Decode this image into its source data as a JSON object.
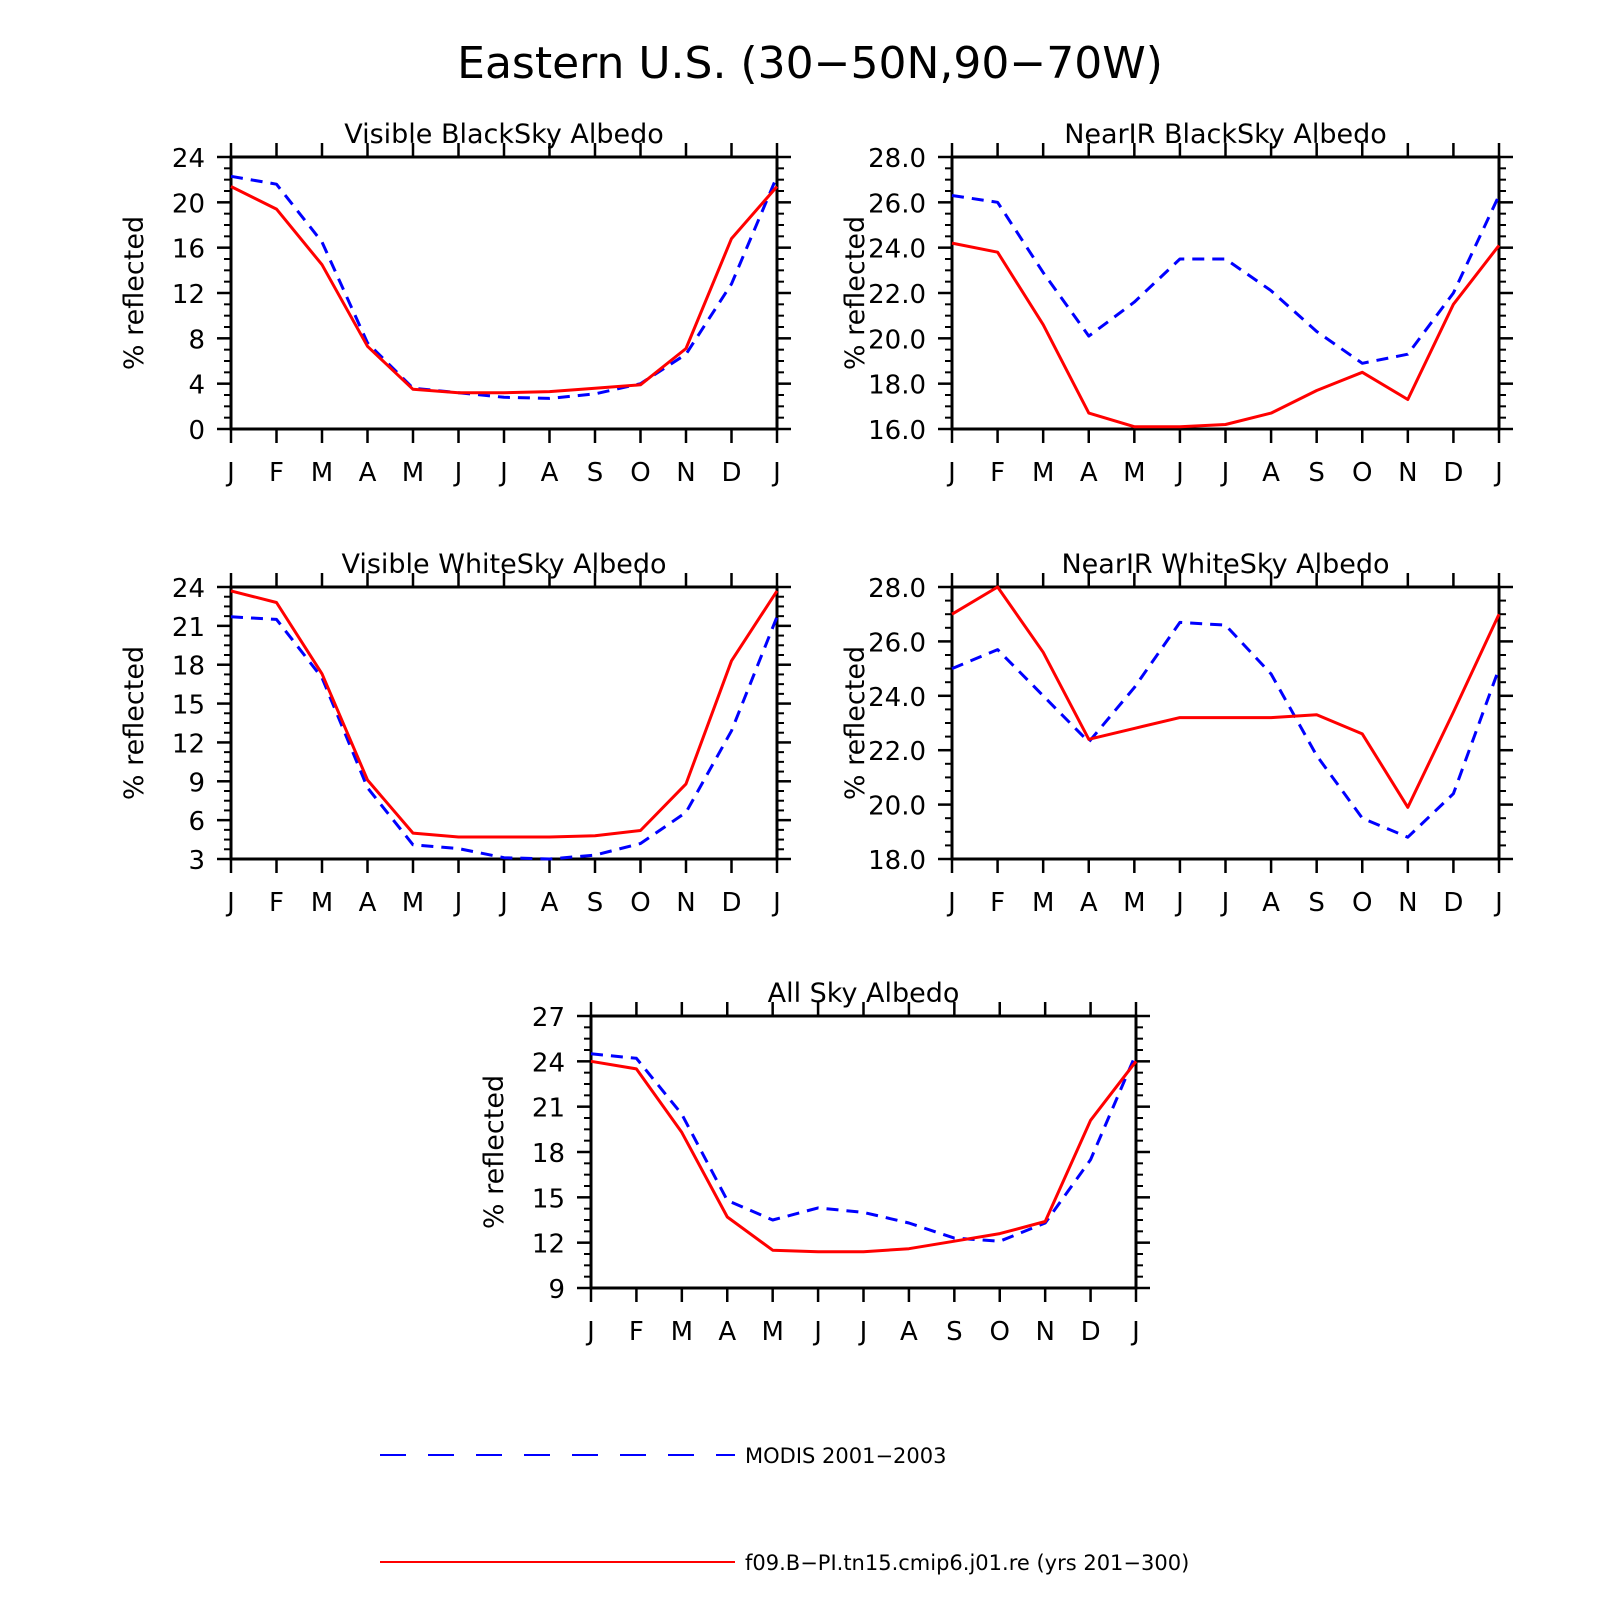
{
  "title": "Eastern U.S. (30−50N,90−70W)",
  "legend": [
    {
      "label": "MODIS 2001−2003",
      "color": "#0000ff",
      "style": "dashed"
    },
    {
      "label": "f09.B−PI.tn15.cmip6.j01.re (yrs 201−300)",
      "color": "#ff0000",
      "style": "solid"
    }
  ],
  "chart_data": [
    {
      "type": "line",
      "title": "Visible BlackSky Albedo",
      "ylabel": "% reflected",
      "categories": [
        "J",
        "F",
        "M",
        "A",
        "M",
        "J",
        "J",
        "A",
        "S",
        "O",
        "N",
        "D",
        "J"
      ],
      "ylim": [
        0,
        24
      ],
      "yticks": [
        "0",
        "4",
        "8",
        "12",
        "16",
        "20",
        "24"
      ],
      "series": [
        {
          "name": "MODIS 2001−2003",
          "color": "#0000ff",
          "dash": true,
          "values": [
            22.3,
            21.6,
            16.5,
            7.6,
            3.6,
            3.2,
            2.8,
            2.7,
            3.1,
            4.0,
            6.6,
            12.8,
            22.3
          ]
        },
        {
          "name": "f09.B−PI.tn15.cmip6.j01.re (yrs 201−300)",
          "color": "#ff0000",
          "dash": false,
          "values": [
            21.4,
            19.4,
            14.5,
            7.3,
            3.5,
            3.2,
            3.2,
            3.3,
            3.6,
            3.9,
            7.1,
            16.8,
            21.4
          ]
        }
      ]
    },
    {
      "type": "line",
      "title": "NearIR BlackSky Albedo",
      "ylabel": "% reflected",
      "categories": [
        "J",
        "F",
        "M",
        "A",
        "M",
        "J",
        "J",
        "A",
        "S",
        "O",
        "N",
        "D",
        "J"
      ],
      "ylim": [
        16,
        28
      ],
      "yticks": [
        "16.0",
        "18.0",
        "20.0",
        "22.0",
        "24.0",
        "26.0",
        "28.0"
      ],
      "series": [
        {
          "name": "MODIS 2001−2003",
          "color": "#0000ff",
          "dash": true,
          "values": [
            26.3,
            26.0,
            22.9,
            20.1,
            21.6,
            23.5,
            23.5,
            22.1,
            20.3,
            18.9,
            19.3,
            22.0,
            26.3
          ]
        },
        {
          "name": "f09.B−PI.tn15.cmip6.j01.re (yrs 201−300)",
          "color": "#ff0000",
          "dash": false,
          "values": [
            24.2,
            23.8,
            20.6,
            16.7,
            16.1,
            16.1,
            16.2,
            16.7,
            17.7,
            18.5,
            17.3,
            21.5,
            24.1
          ]
        }
      ]
    },
    {
      "type": "line",
      "title": "Visible WhiteSky Albedo",
      "ylabel": "% reflected",
      "categories": [
        "J",
        "F",
        "M",
        "A",
        "M",
        "J",
        "J",
        "A",
        "S",
        "O",
        "N",
        "D",
        "J"
      ],
      "ylim": [
        3,
        24
      ],
      "yticks": [
        "3",
        "6",
        "9",
        "12",
        "15",
        "18",
        "21",
        "24"
      ],
      "series": [
        {
          "name": "MODIS 2001−2003",
          "color": "#0000ff",
          "dash": true,
          "values": [
            21.7,
            21.5,
            17.0,
            8.5,
            4.1,
            3.8,
            3.1,
            3.0,
            3.3,
            4.2,
            6.6,
            12.9,
            21.7
          ]
        },
        {
          "name": "f09.B−PI.tn15.cmip6.j01.re (yrs 201−300)",
          "color": "#ff0000",
          "dash": false,
          "values": [
            23.7,
            22.8,
            17.3,
            9.1,
            5.0,
            4.7,
            4.7,
            4.7,
            4.8,
            5.2,
            8.8,
            18.3,
            23.7
          ]
        }
      ]
    },
    {
      "type": "line",
      "title": "NearIR WhiteSky Albedo",
      "ylabel": "% reflected",
      "categories": [
        "J",
        "F",
        "M",
        "A",
        "M",
        "J",
        "J",
        "A",
        "S",
        "O",
        "N",
        "D",
        "J"
      ],
      "ylim": [
        18,
        28
      ],
      "yticks": [
        "18.0",
        "20.0",
        "22.0",
        "24.0",
        "26.0",
        "28.0"
      ],
      "series": [
        {
          "name": "MODIS 2001−2003",
          "color": "#0000ff",
          "dash": true,
          "values": [
            25.0,
            25.7,
            24.0,
            22.3,
            24.3,
            26.7,
            26.6,
            24.8,
            21.8,
            19.5,
            18.8,
            20.4,
            25.0
          ]
        },
        {
          "name": "f09.B−PI.tn15.cmip6.j01.re (yrs 201−300)",
          "color": "#ff0000",
          "dash": false,
          "values": [
            27.0,
            28.0,
            25.6,
            22.4,
            22.8,
            23.2,
            23.2,
            23.2,
            23.3,
            22.6,
            19.9,
            23.4,
            27.0
          ]
        }
      ]
    },
    {
      "type": "line",
      "title": "All Sky Albedo",
      "ylabel": "% reflected",
      "categories": [
        "J",
        "F",
        "M",
        "A",
        "M",
        "J",
        "J",
        "A",
        "S",
        "O",
        "N",
        "D",
        "J"
      ],
      "ylim": [
        9,
        27
      ],
      "yticks": [
        "9",
        "12",
        "15",
        "18",
        "21",
        "24",
        "27"
      ],
      "series": [
        {
          "name": "MODIS 2001−2003",
          "color": "#0000ff",
          "dash": true,
          "values": [
            24.5,
            24.2,
            20.5,
            14.8,
            13.5,
            14.3,
            14.0,
            13.3,
            12.3,
            12.1,
            13.3,
            17.5,
            24.5
          ]
        },
        {
          "name": "f09.B−PI.tn15.cmip6.j01.re (yrs 201−300)",
          "color": "#ff0000",
          "dash": false,
          "values": [
            24.0,
            23.5,
            19.3,
            13.7,
            11.5,
            11.4,
            11.4,
            11.6,
            12.1,
            12.6,
            13.4,
            20.1,
            24.0
          ]
        }
      ]
    }
  ]
}
